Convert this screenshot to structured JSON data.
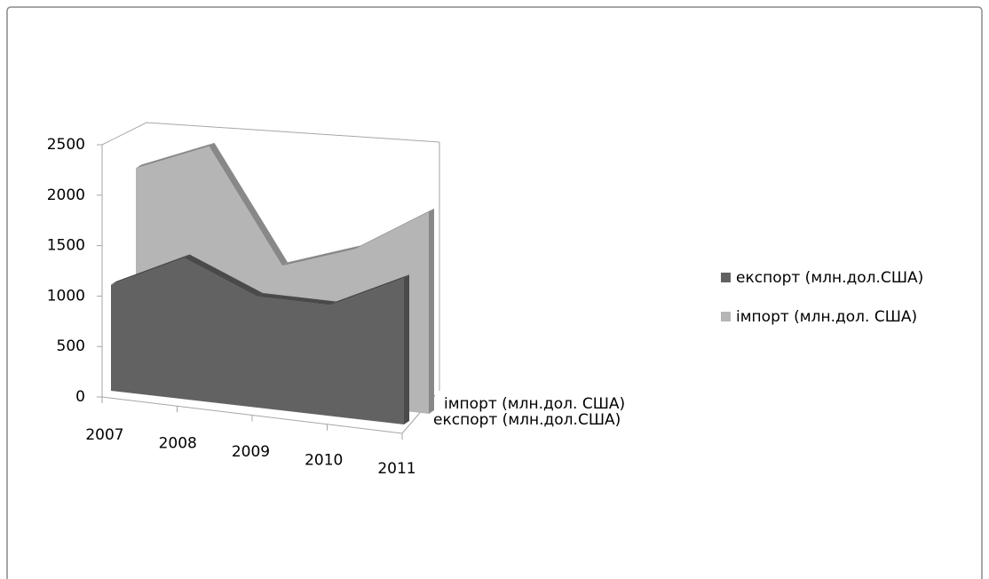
{
  "chart_data": {
    "type": "area3d",
    "categories": [
      "2007",
      "2008",
      "2009",
      "2010",
      "2011"
    ],
    "series": [
      {
        "name": "експорт (млн.дол.США)",
        "color": "#626262",
        "values": [
          1050,
          1400,
          1100,
          1100,
          1450
        ]
      },
      {
        "name": "імпорт (млн.дол. США)",
        "color": "#b5b5b5",
        "values": [
          2100,
          2400,
          1300,
          1550,
          2000
        ]
      }
    ],
    "ylim": [
      0,
      2500
    ],
    "yticks": [
      0,
      500,
      1000,
      1500,
      2000,
      2500
    ],
    "legend": "right"
  }
}
